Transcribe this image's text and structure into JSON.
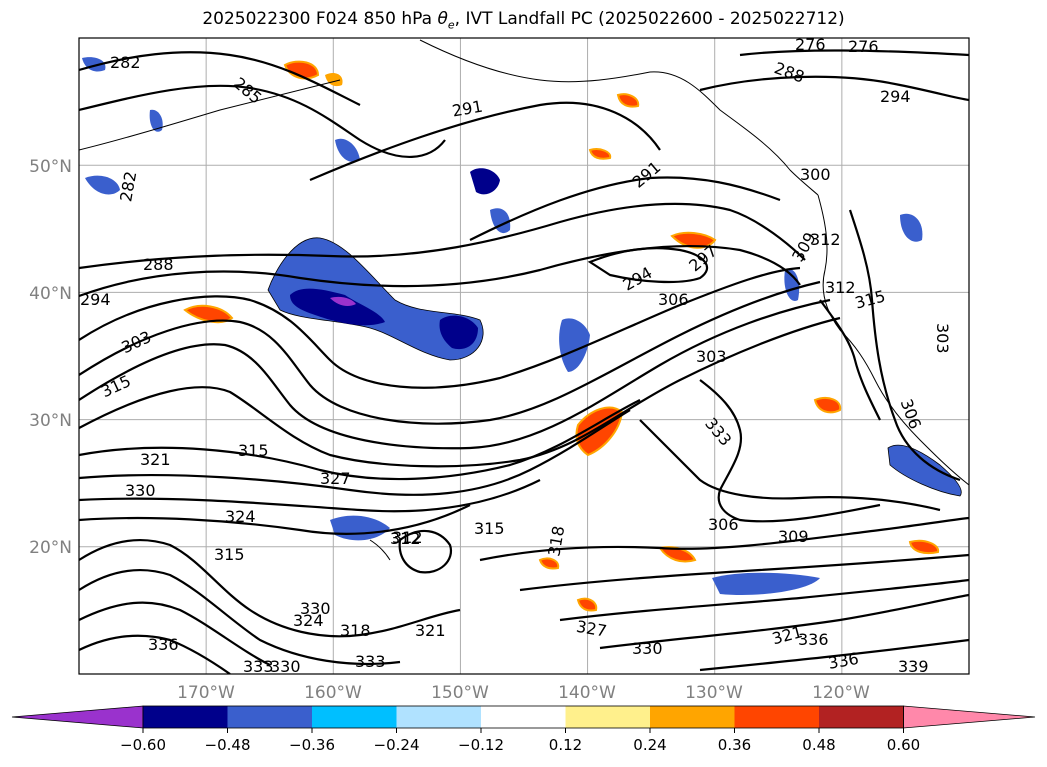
{
  "title": {
    "run": "2025022300 F024 850 hPa ",
    "var_symbol": "θ",
    "var_sub": "e",
    "rest": ", IVT Landfall PC (2025022600 - 2025022712)"
  },
  "map": {
    "lat_labels": [
      "50°N",
      "40°N",
      "30°N",
      "20°N"
    ],
    "lon_labels": [
      "170°W",
      "160°W",
      "150°W",
      "140°W",
      "130°W",
      "120°W"
    ],
    "lat_range_deg_n": [
      10,
      60
    ],
    "lon_range_deg_w": [
      180,
      110
    ],
    "gridlines": true,
    "coastline_color": "#000000",
    "contour_color": "#000000"
  },
  "contour_labels": [
    "282",
    "285",
    "291",
    "276",
    "276",
    "288",
    "294",
    "282",
    "291",
    "300",
    "288",
    "294",
    "297",
    "294",
    "309",
    "312",
    "306",
    "312",
    "315",
    "303",
    "303",
    "315",
    "303",
    "306",
    "321",
    "333",
    "315",
    "327",
    "330",
    "324",
    "315",
    "318",
    "306",
    "309",
    "312",
    "321",
    "327",
    "330",
    "333",
    "336",
    "339",
    "336",
    "333",
    "321",
    "330",
    "324",
    "318",
    "312",
    "315",
    "336",
    "330"
  ],
  "colorbar": {
    "ticks": [
      "−0.60",
      "−0.48",
      "−0.36",
      "−0.24",
      "−0.12",
      "0.12",
      "0.24",
      "0.36",
      "0.48",
      "0.60"
    ],
    "colors": [
      "#9a32cd",
      "#00008b",
      "#3a5fcd",
      "#00bfff",
      "#b0e2ff",
      "#ffffff",
      "#fff08c",
      "#ffa500",
      "#ff4500",
      "#b22222",
      "#ff88aa"
    ],
    "extend": "both"
  }
}
